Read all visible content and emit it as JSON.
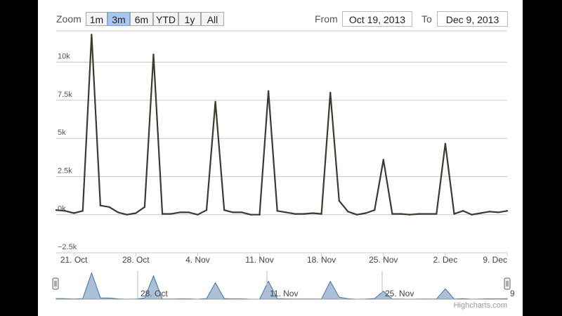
{
  "toolbar": {
    "zoom_label": "Zoom",
    "buttons": [
      "1m",
      "3m",
      "6m",
      "YTD",
      "1y",
      "All"
    ],
    "active": "3m",
    "from_label": "From",
    "from_value": "Oct 19, 2013",
    "to_label": "To",
    "to_value": "Dec 9, 2013"
  },
  "credits": "Highcharts.com",
  "chart_data": {
    "type": "line",
    "title": "",
    "xlabel": "",
    "ylabel": "",
    "ylim": [
      -2500,
      12000
    ],
    "y_ticks": [
      -2500,
      0,
      2500,
      5000,
      7500,
      10000
    ],
    "y_tick_labels": [
      "−2.5k",
      "0k",
      "2.5k",
      "5k",
      "7.5k",
      "10k"
    ],
    "xlim": [
      "2013-10-19",
      "2013-12-09"
    ],
    "x_ticks": [
      "2013-10-21",
      "2013-10-28",
      "2013-11-04",
      "2013-11-11",
      "2013-11-18",
      "2013-11-25",
      "2013-12-02",
      "2013-12-09"
    ],
    "x_tick_labels": [
      "21. Oct",
      "28. Oct",
      "4. Nov",
      "11. Nov",
      "18. Nov",
      "25. Nov",
      "2. Dec",
      "9. Dec"
    ],
    "grid": true,
    "line_color": "#3a3a2e",
    "series": [
      {
        "x": [
          "2013-10-19",
          "2013-10-20",
          "2013-10-21",
          "2013-10-22",
          "2013-10-23",
          "2013-10-24",
          "2013-10-25",
          "2013-10-26",
          "2013-10-27",
          "2013-10-28",
          "2013-10-29",
          "2013-10-30",
          "2013-10-31",
          "2013-11-01",
          "2013-11-02",
          "2013-11-03",
          "2013-11-04",
          "2013-11-05",
          "2013-11-06",
          "2013-11-07",
          "2013-11-08",
          "2013-11-09",
          "2013-11-10",
          "2013-11-11",
          "2013-11-12",
          "2013-11-13",
          "2013-11-14",
          "2013-11-15",
          "2013-11-16",
          "2013-11-17",
          "2013-11-18",
          "2013-11-19",
          "2013-11-20",
          "2013-11-21",
          "2013-11-22",
          "2013-11-23",
          "2013-11-24",
          "2013-11-25",
          "2013-11-26",
          "2013-11-27",
          "2013-11-28",
          "2013-11-29",
          "2013-11-30",
          "2013-12-01",
          "2013-12-02",
          "2013-12-03",
          "2013-12-04",
          "2013-12-05",
          "2013-12-06",
          "2013-12-07",
          "2013-12-08",
          "2013-12-09"
        ],
        "values": [
          300,
          250,
          100,
          250,
          11800,
          600,
          500,
          150,
          0,
          100,
          500,
          10500,
          50,
          50,
          150,
          150,
          0,
          300,
          7400,
          300,
          150,
          150,
          0,
          0,
          8100,
          250,
          150,
          50,
          50,
          100,
          50,
          8000,
          900,
          200,
          0,
          100,
          300,
          3600,
          50,
          50,
          0,
          50,
          50,
          50,
          4650,
          50,
          250,
          0,
          100,
          200,
          150,
          250
        ]
      }
    ]
  }
}
